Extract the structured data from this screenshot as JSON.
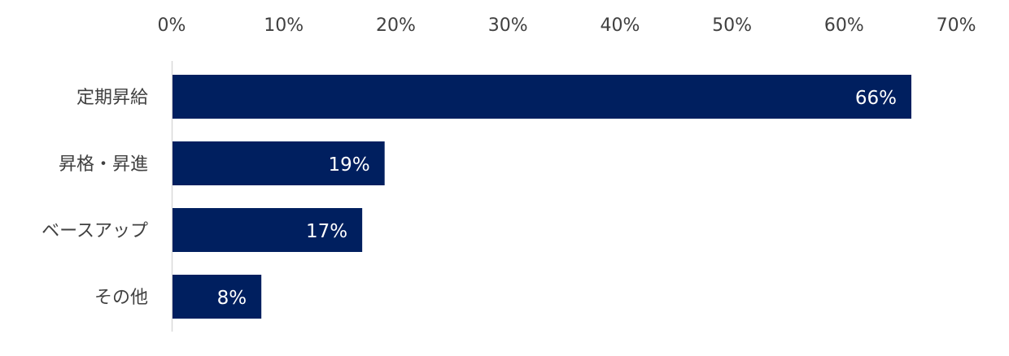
{
  "chart_data": {
    "type": "bar",
    "orientation": "horizontal",
    "categories": [
      "定期昇給",
      "昇格・昇進",
      "ベースアップ",
      "その他"
    ],
    "values": [
      66,
      19,
      17,
      8
    ],
    "data_labels": [
      "66%",
      "19%",
      "17%",
      "8%"
    ],
    "title": "",
    "xlabel": "",
    "ylabel": "",
    "xlim": [
      0,
      70
    ],
    "x_ticks": [
      "0%",
      "10%",
      "20%",
      "30%",
      "40%",
      "50%",
      "60%",
      "70%"
    ],
    "x_axis_position": "top",
    "grid": false,
    "legend": "none",
    "bar_color": "#001f5f"
  }
}
